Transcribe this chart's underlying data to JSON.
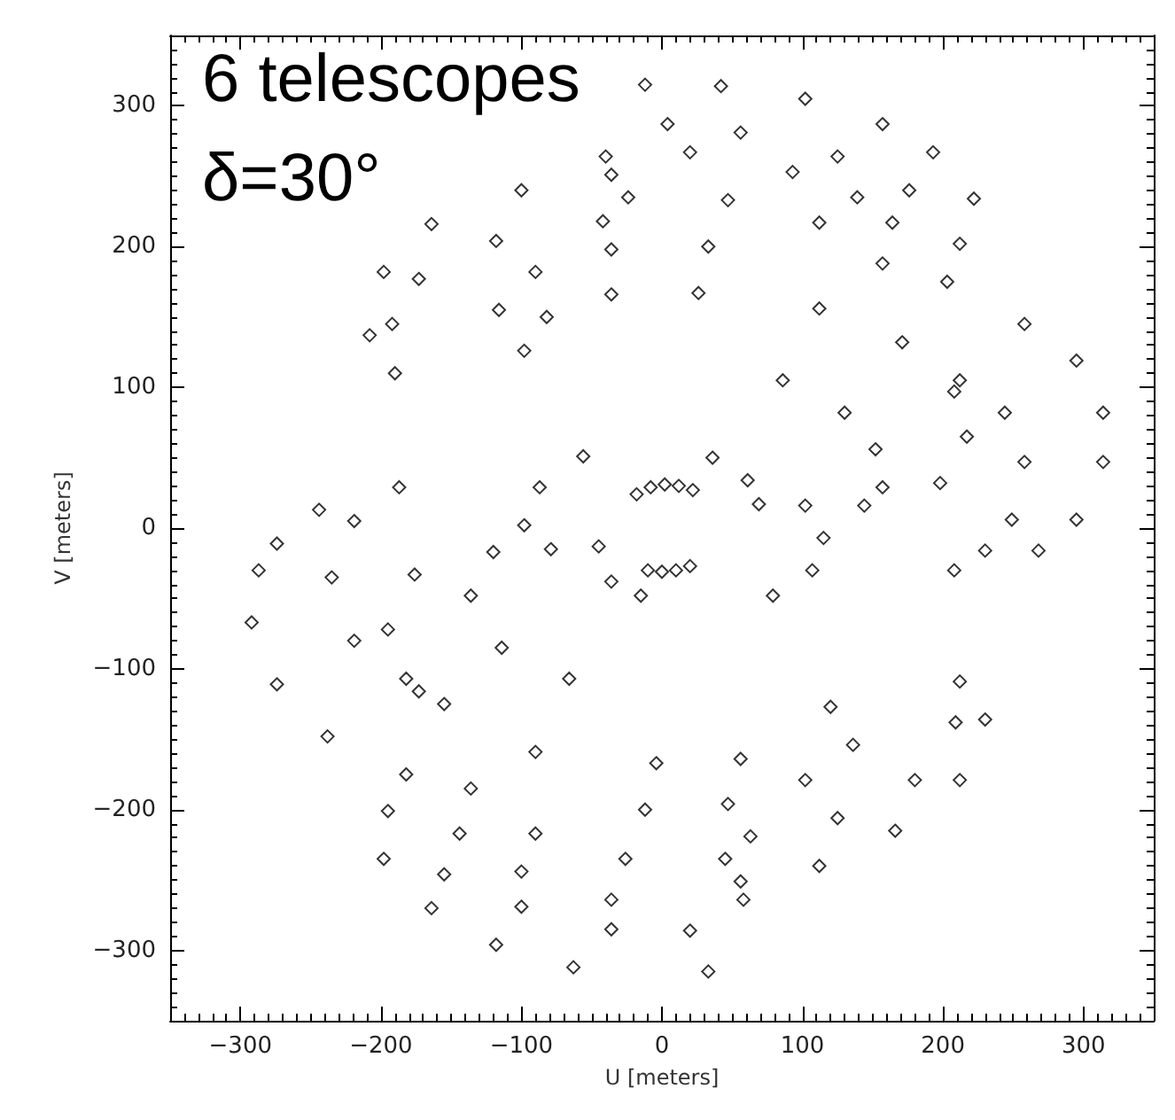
{
  "chart_data": {
    "type": "scatter",
    "annotations": [
      "6 telescopes",
      "δ=30°"
    ],
    "xlabel": "U [meters]",
    "ylabel": "V [meters]",
    "xlim": [
      -350,
      350
    ],
    "ylim": [
      -350,
      350
    ],
    "xticks": [
      -300,
      -200,
      -100,
      0,
      100,
      200,
      300
    ],
    "yticks": [
      -300,
      -200,
      -100,
      0,
      100,
      200,
      300
    ],
    "grid": false,
    "marker": "diamond",
    "series": [
      {
        "color": "#000000",
        "x": [
          -12,
          42,
          102,
          157,
          193,
          222,
          4,
          56,
          125,
          176,
          212,
          -40,
          20,
          93,
          139,
          164,
          -24,
          47,
          112,
          157,
          -36,
          -100,
          -164,
          -198,
          -208,
          -42,
          -118,
          -173,
          -192,
          -190,
          33,
          -36,
          -90,
          -116,
          26,
          -36,
          -82,
          -98,
          203,
          258,
          295,
          314,
          314,
          295,
          268,
          112,
          171,
          208,
          217,
          198,
          212,
          244,
          258,
          249,
          230,
          208,
          86,
          130,
          152,
          157,
          144,
          36,
          61,
          69,
          102,
          115,
          107,
          79,
          -18,
          -8,
          2,
          12,
          22,
          -56,
          -87,
          -98,
          -79,
          -198,
          -164,
          -118,
          -63,
          33,
          -195,
          -155,
          -100,
          -36,
          20,
          -144,
          -100,
          -36,
          58,
          -136,
          -90,
          -26,
          45,
          56,
          112,
          166,
          212,
          230,
          63,
          125,
          180,
          209,
          212,
          -4,
          56,
          120,
          -12,
          47,
          102,
          136,
          -244,
          -274,
          -287,
          -292,
          -274,
          -238,
          -182,
          -187,
          -219,
          -235,
          -219,
          -173,
          -90,
          -176,
          -195,
          -182,
          -155,
          -120,
          -136,
          -114,
          -66,
          -45,
          -36,
          -15,
          -10,
          0,
          10,
          20
        ],
        "values": [
          315,
          314,
          305,
          287,
          267,
          234,
          287,
          281,
          264,
          240,
          202,
          264,
          267,
          253,
          235,
          217,
          235,
          233,
          217,
          188,
          251,
          240,
          216,
          182,
          137,
          218,
          204,
          177,
          145,
          110,
          200,
          198,
          182,
          155,
          167,
          166,
          150,
          126,
          175,
          145,
          119,
          82,
          47,
          6,
          -16,
          156,
          132,
          97,
          65,
          32,
          105,
          82,
          47,
          6,
          -16,
          -30,
          105,
          82,
          56,
          29,
          16,
          50,
          34,
          17,
          16,
          -7,
          -30,
          -48,
          24,
          29,
          31,
          30,
          27,
          51,
          29,
          2,
          -15,
          -235,
          -270,
          -296,
          -312,
          -315,
          -201,
          -246,
          -269,
          -285,
          -286,
          -217,
          -244,
          -264,
          -264,
          -185,
          -217,
          -235,
          -235,
          -251,
          -240,
          -215,
          -179,
          -136,
          -219,
          -206,
          -179,
          -138,
          -109,
          -167,
          -164,
          -127,
          -200,
          -196,
          -179,
          -154,
          13,
          -11,
          -30,
          -67,
          -111,
          -148,
          -175,
          29,
          5,
          -35,
          -80,
          -116,
          -159,
          -33,
          -72,
          -107,
          -125,
          -17,
          -48,
          -85,
          -107,
          -13,
          -38,
          -48,
          -30,
          -31,
          -30,
          -27
        ]
      }
    ]
  }
}
